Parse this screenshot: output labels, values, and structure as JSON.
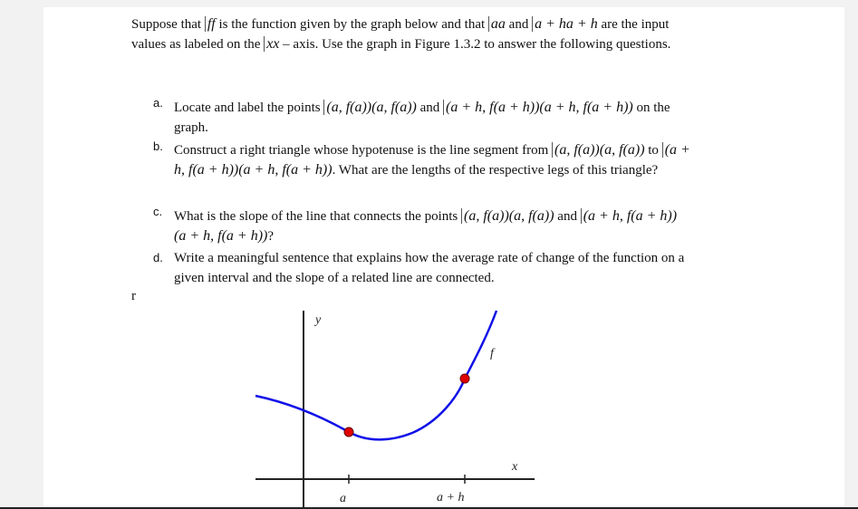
{
  "intro": [
    "Suppose that ",
    "ff",
    " is the function given by the graph below and that ",
    "aa",
    " and ",
    "a + ha + h",
    " are the input values as labeled on the ",
    "xx",
    " – axis.  Use the graph in Figure 1.3.2 to answer the following questions."
  ],
  "items": [
    {
      "marker": "a.",
      "segments": [
        "Locate and label the points ",
        "(a, f(a))(a, f(a))",
        " and ",
        "(a + h, f(a + h))(a + h, f(a + h))",
        " on the graph."
      ]
    },
    {
      "marker": "b.",
      "segments": [
        "Construct a right triangle whose hypotenuse is the line segment from ",
        "(a, f(a))(a, f(a))",
        " to ",
        "(a + h, f(a + h))(a + h, f(a + h))",
        ".  What are the lengths of the respective legs of this triangle?"
      ]
    },
    {
      "marker": "c.",
      "segments": [
        "What is the slope of the line that connects the points ",
        "(a, f(a))(a, f(a))",
        " and ",
        "(a + h, f(a + h))(a + h, f(a + h))",
        "?"
      ]
    },
    {
      "marker": "d.",
      "segments": [
        "Write a meaningful sentence that explains how the average rate of change of the function on a given interval and the slope of a related line are connected."
      ]
    }
  ],
  "stray": "r",
  "graph": {
    "y_label": "y",
    "f_label": "f",
    "x_label": "x",
    "a_label": "a",
    "ah_label": "a + h"
  }
}
